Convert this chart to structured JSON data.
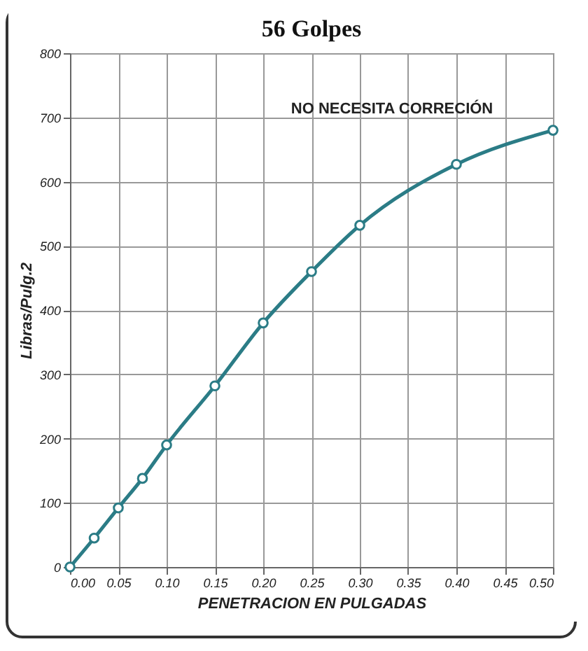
{
  "chart_data": {
    "type": "line",
    "title": "56 Golpes",
    "xlabel": "PENETRACION EN PULGADAS",
    "ylabel": "Libras/Pulg.2",
    "annotations": [
      "NO NECESITA CORRECIÓN"
    ],
    "x": [
      0,
      0.025,
      0.05,
      0.075,
      0.1,
      0.15,
      0.2,
      0.25,
      0.3,
      0.4,
      0.5
    ],
    "series": [
      {
        "color": "#2b7c86",
        "values": [
          0,
          45,
          92,
          138,
          190,
          282,
          380,
          460,
          532,
          627,
          680
        ]
      }
    ],
    "xlim": [
      0,
      0.5
    ],
    "xticks": [
      {
        "value": 0,
        "label": "0.00"
      },
      {
        "value": 0.05,
        "label": "0.05"
      },
      {
        "value": 0.1,
        "label": "0.10"
      },
      {
        "value": 0.15,
        "label": "0.15"
      },
      {
        "value": 0.2,
        "label": "0.20"
      },
      {
        "value": 0.25,
        "label": "0.25"
      },
      {
        "value": 0.3,
        "label": "0.30"
      },
      {
        "value": 0.35,
        "label": "0.35"
      },
      {
        "value": 0.4,
        "label": "0.40"
      },
      {
        "value": 0.45,
        "label": "0.45"
      },
      {
        "value": 0.5,
        "label": "0.50"
      }
    ],
    "ylim": [
      0,
      800
    ],
    "yticks": [
      0,
      100,
      200,
      300,
      400,
      500,
      600,
      700,
      800
    ],
    "grid": true,
    "marker": "circle",
    "line_style": "solid"
  }
}
